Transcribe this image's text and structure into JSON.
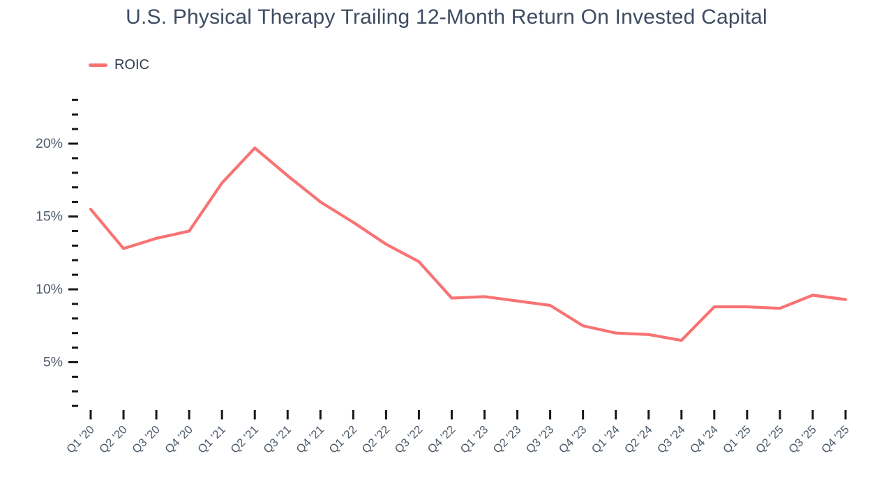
{
  "header": {
    "title": "U.S. Physical Therapy Trailing 12-Month Return On Invested Capital"
  },
  "colors": {
    "line": "#f87373",
    "title_text": "#3e4c62",
    "axis_text": "#4d5a6a",
    "tick": "#15181d",
    "background": "#ffffff"
  },
  "chart_data": {
    "type": "line",
    "title": "U.S. Physical Therapy Trailing 12-Month Return On Invested Capital",
    "xlabel": "",
    "ylabel": "",
    "grid": false,
    "legend_position": "top-left",
    "categories": [
      "Q1 '20",
      "Q2 '20",
      "Q3 '20",
      "Q4 '20",
      "Q1 '21",
      "Q2 '21",
      "Q3 '21",
      "Q4 '21",
      "Q1 '22",
      "Q2 '22",
      "Q3 '22",
      "Q4 '22",
      "Q1 '23",
      "Q2 '23",
      "Q3 '23",
      "Q4 '23",
      "Q1 '24",
      "Q2 '24",
      "Q3 '24",
      "Q4 '24",
      "Q1 '25",
      "Q2 '25",
      "Q3 '25",
      "Q4 '25"
    ],
    "series": [
      {
        "name": "ROIC",
        "color": "#f87373",
        "unit": "%",
        "values": [
          15.5,
          12.8,
          13.5,
          14.0,
          17.3,
          19.7,
          17.8,
          16.0,
          14.6,
          13.1,
          11.9,
          9.4,
          9.5,
          9.2,
          8.9,
          7.5,
          7.0,
          6.9,
          6.5,
          8.8,
          8.8,
          8.7,
          9.6,
          9.3
        ]
      }
    ],
    "y_axis": {
      "majors": [
        {
          "value": 5,
          "label": "5%"
        },
        {
          "value": 10,
          "label": "10%"
        },
        {
          "value": 15,
          "label": "15%"
        },
        {
          "value": 20,
          "label": "20%"
        }
      ],
      "minor_step": 1,
      "minor_min": 2,
      "minor_max": 23
    },
    "ylim": [
      2,
      23
    ]
  }
}
